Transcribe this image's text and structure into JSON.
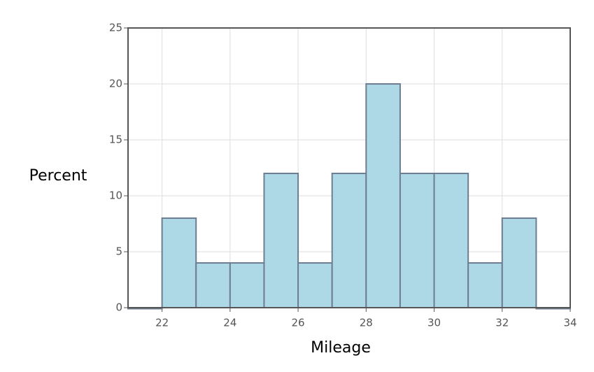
{
  "chart_data": {
    "type": "histogram",
    "x_label": "Mileage",
    "y_label": "Percent",
    "bins": [
      21,
      22,
      23,
      24,
      25,
      26,
      27,
      28,
      29,
      30,
      31,
      32,
      33,
      34
    ],
    "values": [
      0,
      8,
      4,
      4,
      12,
      4,
      12,
      20,
      12,
      12,
      4,
      8,
      0
    ],
    "color": "#add8e6",
    "edgecolor": "#6e7e91",
    "xlim": [
      21,
      34
    ],
    "xticks": [
      22,
      24,
      26,
      28,
      30,
      32,
      34
    ],
    "ylim": [
      0,
      25
    ],
    "yticks": [
      0,
      5,
      10,
      15,
      20,
      25
    ],
    "grid": true
  }
}
